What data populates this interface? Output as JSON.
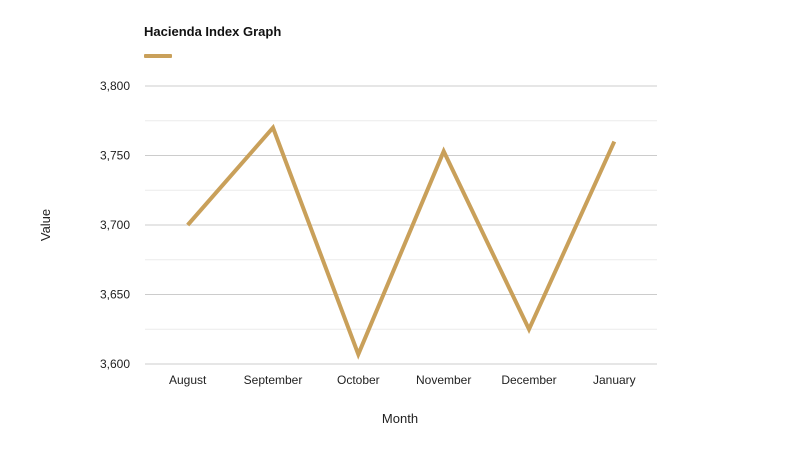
{
  "chart_data": {
    "type": "line",
    "title": "Hacienda Index Graph",
    "xlabel": "Month",
    "ylabel": "Value",
    "categories": [
      "August",
      "September",
      "October",
      "November",
      "December",
      "January"
    ],
    "series": [
      {
        "values": [
          3700,
          3770,
          3607,
          3753,
          3625,
          3760
        ],
        "color": "#c9a05a"
      }
    ],
    "ylim": [
      3600,
      3800
    ],
    "y_ticks": [
      {
        "value": 3600,
        "label": "3,600"
      },
      {
        "value": 3650,
        "label": "3,650"
      },
      {
        "value": 3700,
        "label": "3,700"
      },
      {
        "value": 3750,
        "label": "3,750"
      },
      {
        "value": 3800,
        "label": "3,800"
      }
    ],
    "y_minor_ticks": [
      3625,
      3675,
      3725,
      3775
    ],
    "grid": true,
    "legend": "top-left",
    "colors": {
      "major_grid": "#cccccc",
      "minor_grid": "#ececec",
      "text": "#222222"
    }
  }
}
